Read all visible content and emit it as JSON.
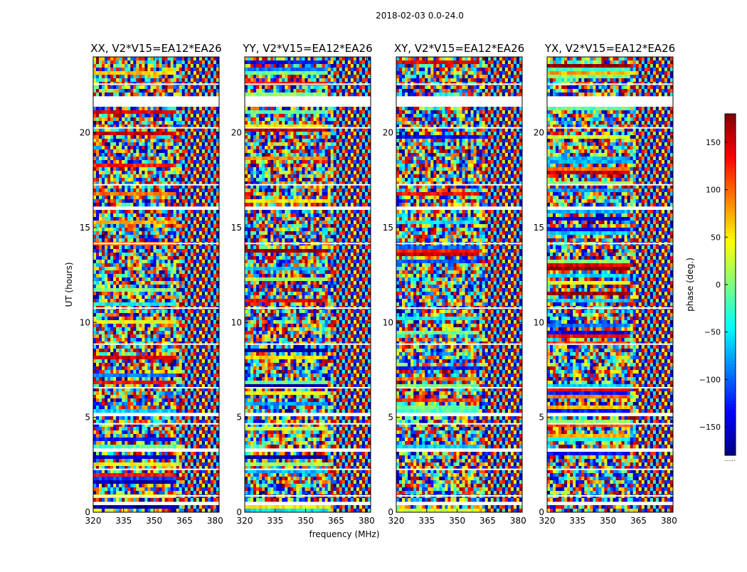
{
  "figure_title": "2018-02-03 0.0-24.0",
  "xlabel": "frequency (MHz)",
  "ylabel": "UT (hours)",
  "colorbar_label": "phase (deg.)",
  "colorbar_dots": "......",
  "chart_data": {
    "type": "heatmap",
    "title": "2018-02-03 0.0-24.0",
    "x_range": [
      320,
      382
    ],
    "y_range": [
      0,
      24
    ],
    "x_ticks": [
      320,
      335,
      350,
      365,
      380
    ],
    "y_ticks": [
      0,
      5,
      10,
      15,
      20
    ],
    "xlabel": "frequency (MHz)",
    "ylabel": "UT (hours)",
    "colormap": "jet",
    "color_range": [
      -180,
      180
    ],
    "colorbar_ticks": [
      150,
      100,
      50,
      0,
      -50,
      -100,
      -150
    ],
    "colorbar_label": "phase (deg.)",
    "panels": [
      {
        "title": "XX, V2*V15=EA12*EA26"
      },
      {
        "title": "YY, V2*V15=EA12*EA26"
      },
      {
        "title": "XY, V2*V15=EA12*EA26"
      },
      {
        "title": "YX, V2*V15=EA12*EA26"
      }
    ]
  }
}
